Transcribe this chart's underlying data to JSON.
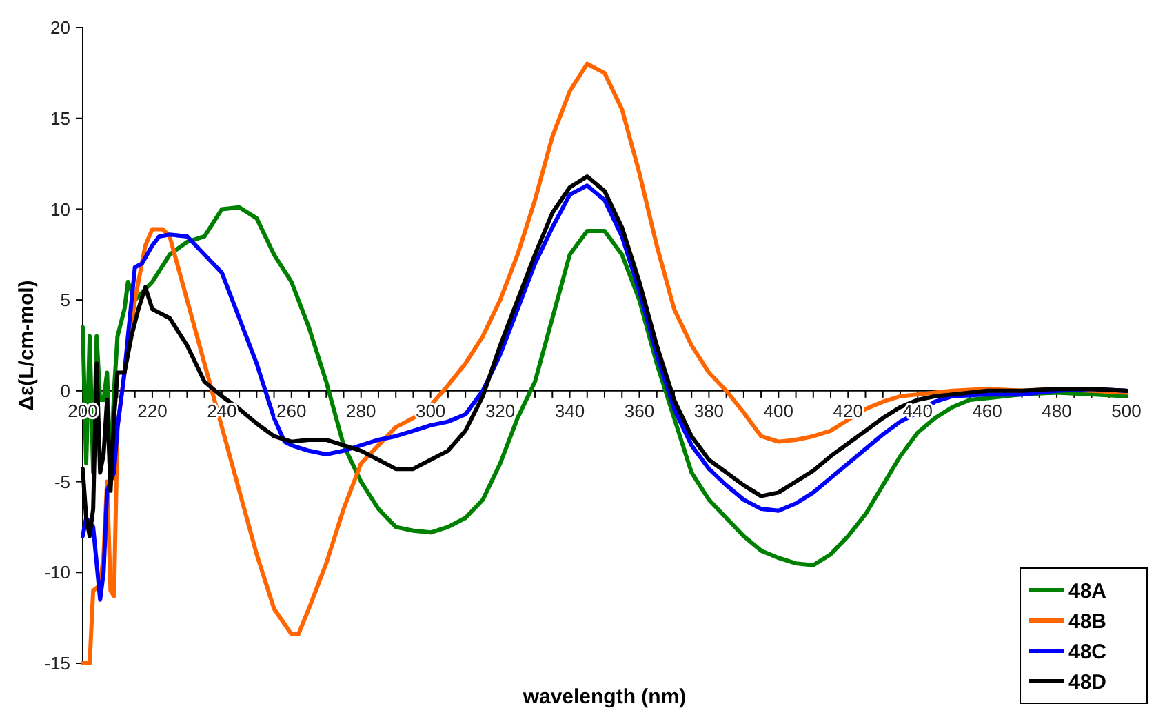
{
  "chart_data": {
    "type": "line",
    "xlabel": "wavelength (nm)",
    "ylabel": "Δε(L/cm-mol)",
    "xlim": [
      200,
      500
    ],
    "ylim": [
      -15,
      20
    ],
    "yticks": [
      -15,
      -10,
      -5,
      0,
      5,
      10,
      15,
      20
    ],
    "xticks": [
      200,
      {
        "value": 205,
        "label": null
      },
      {
        "value": 210,
        "label": null
      },
      {
        "value": 215,
        "label": null
      },
      220,
      {
        "value": 225,
        "label": null
      },
      {
        "value": 230,
        "label": null
      },
      {
        "value": 235,
        "label": null
      },
      240,
      {
        "value": 245,
        "label": null
      },
      {
        "value": 250,
        "label": null
      },
      {
        "value": 255,
        "label": null
      },
      260,
      {
        "value": 265,
        "label": null
      },
      {
        "value": 270,
        "label": null
      },
      {
        "value": 275,
        "label": null
      },
      280,
      {
        "value": 285,
        "label": null
      },
      {
        "value": 290,
        "label": null
      },
      {
        "value": 295,
        "label": null
      },
      300,
      {
        "value": 305,
        "label": null
      },
      {
        "value": 310,
        "label": null
      },
      {
        "value": 315,
        "label": null
      },
      320,
      {
        "value": 325,
        "label": null
      },
      {
        "value": 330,
        "label": null
      },
      {
        "value": 335,
        "label": null
      },
      340,
      {
        "value": 345,
        "label": null
      },
      {
        "value": 350,
        "label": null
      },
      {
        "value": 355,
        "label": null
      },
      360,
      {
        "value": 365,
        "label": null
      },
      {
        "value": 370,
        "label": null
      },
      {
        "value": 375,
        "label": null
      },
      380,
      {
        "value": 385,
        "label": null
      },
      {
        "value": 390,
        "label": null
      },
      {
        "value": 395,
        "label": null
      },
      400,
      {
        "value": 405,
        "label": null
      },
      {
        "value": 410,
        "label": null
      },
      {
        "value": 415,
        "label": null
      },
      420,
      {
        "value": 425,
        "label": null
      },
      {
        "value": 430,
        "label": null
      },
      {
        "value": 435,
        "label": null
      },
      440,
      {
        "value": 445,
        "label": null
      },
      {
        "value": 450,
        "label": null
      },
      {
        "value": 455,
        "label": null
      },
      460,
      {
        "value": 465,
        "label": null
      },
      {
        "value": 470,
        "label": null
      },
      {
        "value": 475,
        "label": null
      },
      480,
      {
        "value": 485,
        "label": null
      },
      {
        "value": 490,
        "label": null
      },
      {
        "value": 495,
        "label": null
      },
      500
    ],
    "grid": false,
    "legend": "bottom right",
    "marker": "none",
    "line_style": "solid",
    "series": [
      {
        "name": "48A",
        "color": "#008000",
        "x": [
          200,
          201,
          202,
          203,
          204,
          205,
          206,
          207,
          208,
          209,
          210,
          212,
          213,
          215,
          220,
          225,
          230,
          235,
          240,
          245,
          250,
          255,
          260,
          265,
          270,
          275,
          280,
          285,
          290,
          295,
          300,
          305,
          310,
          315,
          320,
          325,
          330,
          335,
          340,
          345,
          350,
          355,
          360,
          365,
          370,
          375,
          380,
          385,
          390,
          395,
          400,
          405,
          410,
          415,
          420,
          425,
          430,
          435,
          440,
          445,
          450,
          455,
          460,
          470,
          480,
          490,
          500
        ],
        "values": [
          3.5,
          -4,
          3,
          -4.5,
          3,
          -0.5,
          -0.5,
          1,
          -5,
          0,
          3,
          4.5,
          6,
          5,
          6,
          7.5,
          8.2,
          8.5,
          10,
          10.1,
          9.5,
          7.5,
          6,
          3.5,
          0.5,
          -3,
          -5,
          -6.5,
          -7.5,
          -7.7,
          -7.8,
          -7.5,
          -7,
          -6,
          -4,
          -1.5,
          0.5,
          4,
          7.5,
          8.8,
          8.8,
          7.5,
          5,
          1.5,
          -1.5,
          -4.5,
          -6,
          -7,
          -8,
          -8.8,
          -9.2,
          -9.5,
          -9.6,
          -9,
          -8,
          -6.8,
          -5.2,
          -3.6,
          -2.3,
          -1.5,
          -0.9,
          -0.5,
          -0.4,
          -0.2,
          -0.1,
          -0.2,
          -0.3
        ]
      },
      {
        "name": "48B",
        "color": "#ff6600",
        "x": [
          200,
          202,
          203,
          205,
          206,
          207,
          208,
          209,
          210,
          212,
          215,
          218,
          220,
          223,
          225,
          230,
          235,
          240,
          245,
          250,
          255,
          260,
          262,
          265,
          270,
          275,
          280,
          285,
          290,
          295,
          300,
          305,
          310,
          315,
          320,
          325,
          330,
          335,
          340,
          345,
          350,
          355,
          360,
          365,
          370,
          375,
          380,
          385,
          390,
          395,
          400,
          405,
          410,
          415,
          420,
          425,
          430,
          435,
          440,
          450,
          460,
          470,
          480,
          490,
          500
        ],
        "values": [
          -15,
          -15,
          -11,
          -10.7,
          -9,
          -5,
          -11,
          -11.3,
          -2,
          1,
          5,
          8,
          8.9,
          8.9,
          8.5,
          5,
          1.5,
          -2,
          -5.5,
          -9,
          -12,
          -13.4,
          -13.4,
          -12,
          -9.5,
          -6.5,
          -4,
          -3,
          -2,
          -1.5,
          -0.8,
          0.3,
          1.5,
          3,
          5,
          7.5,
          10.5,
          14,
          16.5,
          18,
          17.5,
          15.5,
          12,
          8,
          4.5,
          2.5,
          1,
          0,
          -1.2,
          -2.5,
          -2.8,
          -2.7,
          -2.5,
          -2.2,
          -1.6,
          -1,
          -0.6,
          -0.3,
          -0.2,
          0,
          0.1,
          0,
          0.1,
          0,
          -0.1
        ]
      },
      {
        "name": "48C",
        "color": "#0000ff",
        "x": [
          200,
          201,
          203,
          205,
          206,
          207,
          209,
          210,
          212,
          213,
          215,
          217,
          220,
          222,
          225,
          230,
          235,
          240,
          245,
          250,
          255,
          258,
          260,
          265,
          270,
          275,
          280,
          285,
          290,
          295,
          300,
          305,
          310,
          315,
          320,
          325,
          330,
          335,
          340,
          345,
          350,
          355,
          360,
          365,
          370,
          375,
          380,
          385,
          390,
          395,
          400,
          405,
          410,
          415,
          420,
          425,
          430,
          435,
          440,
          445,
          450,
          460,
          470,
          480,
          490,
          500
        ],
        "values": [
          -8,
          -7,
          -7.5,
          -11.5,
          -10,
          -5.5,
          -4.5,
          -2,
          1,
          3,
          6.8,
          7,
          8,
          8.5,
          8.6,
          8.5,
          7.5,
          6.5,
          4,
          1.5,
          -1.5,
          -2.8,
          -3,
          -3.3,
          -3.5,
          -3.3,
          -3,
          -2.7,
          -2.5,
          -2.2,
          -1.9,
          -1.7,
          -1.3,
          0,
          2,
          4.5,
          7,
          9,
          10.8,
          11.3,
          10.5,
          8.5,
          5.5,
          2,
          -1,
          -3,
          -4.3,
          -5.2,
          -6,
          -6.5,
          -6.6,
          -6.2,
          -5.6,
          -4.8,
          -4,
          -3.2,
          -2.4,
          -1.7,
          -1.2,
          -0.6,
          -0.3,
          -0.2,
          -0.2,
          0,
          0.1,
          0
        ]
      },
      {
        "name": "48D",
        "color": "#000000",
        "x": [
          200,
          201,
          202,
          203,
          204,
          205,
          206,
          207,
          208,
          209,
          210,
          212,
          214,
          216,
          218,
          220,
          225,
          230,
          235,
          240,
          245,
          250,
          255,
          260,
          265,
          270,
          275,
          280,
          285,
          290,
          295,
          300,
          305,
          310,
          315,
          320,
          325,
          330,
          335,
          340,
          345,
          350,
          355,
          360,
          365,
          370,
          375,
          380,
          385,
          390,
          395,
          400,
          405,
          410,
          415,
          420,
          425,
          430,
          435,
          440,
          445,
          450,
          460,
          470,
          480,
          490,
          500
        ],
        "values": [
          -4.3,
          -7,
          -8,
          -6.5,
          1.5,
          -4.5,
          -3.5,
          -0.5,
          -5.5,
          -1.5,
          1,
          1,
          3,
          4.5,
          5.7,
          4.5,
          4,
          2.5,
          0.5,
          -0.3,
          -1,
          -1.8,
          -2.5,
          -2.8,
          -2.7,
          -2.7,
          -3,
          -3.3,
          -3.8,
          -4.3,
          -4.3,
          -3.8,
          -3.3,
          -2.2,
          -0.3,
          2.5,
          5,
          7.5,
          9.8,
          11.2,
          11.8,
          11,
          9,
          6,
          2.5,
          -0.5,
          -2.5,
          -3.8,
          -4.5,
          -5.2,
          -5.8,
          -5.6,
          -5,
          -4.4,
          -3.6,
          -2.9,
          -2.2,
          -1.5,
          -0.9,
          -0.5,
          -0.3,
          -0.2,
          0,
          0,
          0.1,
          0.1,
          0
        ]
      }
    ]
  }
}
